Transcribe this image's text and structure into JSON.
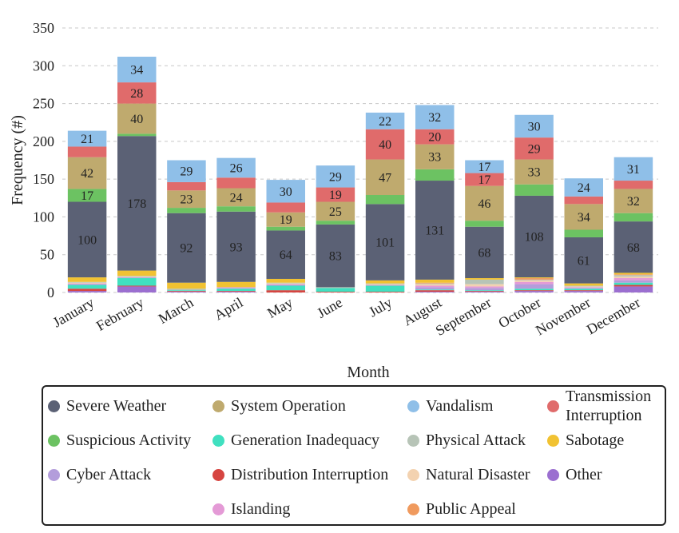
{
  "chart_data": {
    "type": "bar",
    "stacked": true,
    "xlabel": "Month",
    "ylabel": "Frequency (#)",
    "ylim": [
      0,
      350
    ],
    "yticks": [
      0,
      50,
      100,
      150,
      200,
      250,
      300,
      350
    ],
    "grid": "horizontal dashed",
    "legend_position": "bottom",
    "categories": [
      "January",
      "February",
      "March",
      "April",
      "May",
      "June",
      "July",
      "August",
      "September",
      "October",
      "November",
      "December"
    ],
    "series": [
      {
        "name": "Other",
        "color": "#9b6fd0",
        "values": [
          2,
          8,
          1,
          1,
          0,
          0,
          0,
          1,
          1,
          2,
          2,
          8
        ]
      },
      {
        "name": "Distribution Interruption",
        "color": "#d64541",
        "values": [
          3,
          1,
          1,
          1,
          3,
          1,
          1,
          2,
          1,
          1,
          1,
          2
        ]
      },
      {
        "name": "Generation Inadequacy",
        "color": "#40e0c0",
        "values": [
          5,
          10,
          1,
          3,
          6,
          5,
          8,
          1,
          1,
          2,
          2,
          3
        ]
      },
      {
        "name": "Cyber Attack",
        "color": "#b39ddb",
        "values": [
          1,
          1,
          0,
          1,
          1,
          0,
          0,
          3,
          3,
          6,
          1,
          3
        ]
      },
      {
        "name": "Islanding",
        "color": "#e49ad6",
        "values": [
          1,
          0,
          0,
          1,
          1,
          0,
          1,
          2,
          2,
          3,
          1,
          3
        ]
      },
      {
        "name": "Natural Disaster",
        "color": "#f3d2b0",
        "values": [
          1,
          1,
          0,
          0,
          1,
          0,
          1,
          2,
          3,
          2,
          1,
          2
        ]
      },
      {
        "name": "Physical Attack",
        "color": "#b7c4b7",
        "values": [
          1,
          1,
          2,
          0,
          1,
          1,
          1,
          1,
          6,
          1,
          1,
          2
        ]
      },
      {
        "name": "Public Appeal",
        "color": "#f09a5e",
        "values": [
          0,
          0,
          0,
          0,
          0,
          0,
          0,
          1,
          0,
          2,
          0,
          1
        ]
      },
      {
        "name": "Sabotage",
        "color": "#f1c232",
        "values": [
          6,
          7,
          8,
          7,
          5,
          0,
          4,
          4,
          2,
          1,
          3,
          2
        ]
      },
      {
        "name": "Severe Weather",
        "color": "#5b6175",
        "values": [
          100,
          178,
          92,
          93,
          64,
          83,
          101,
          131,
          68,
          108,
          61,
          68
        ]
      },
      {
        "name": "Suspicious Activity",
        "color": "#6cc262",
        "values": [
          17,
          3,
          7,
          7,
          5,
          5,
          12,
          15,
          8,
          15,
          10,
          11
        ]
      },
      {
        "name": "System Operation",
        "color": "#bfaa6e",
        "values": [
          42,
          40,
          23,
          24,
          19,
          25,
          47,
          33,
          46,
          33,
          34,
          32
        ]
      },
      {
        "name": "Transmission Interruption",
        "color": "#e06b6b",
        "values": [
          14,
          28,
          11,
          14,
          13,
          19,
          40,
          20,
          17,
          29,
          10,
          11
        ]
      },
      {
        "name": "Vandalism",
        "color": "#8fbfe8",
        "values": [
          21,
          34,
          29,
          26,
          30,
          29,
          22,
          32,
          17,
          30,
          24,
          31
        ]
      }
    ],
    "data_labels": [
      {
        "series": "Severe Weather",
        "values": [
          100,
          178,
          92,
          93,
          64,
          83,
          101,
          131,
          68,
          108,
          61,
          68
        ]
      },
      {
        "series": "System Operation",
        "values": [
          42,
          40,
          23,
          24,
          19,
          25,
          47,
          33,
          46,
          33,
          34,
          32
        ]
      },
      {
        "series": "Vandalism",
        "values": [
          21,
          34,
          29,
          26,
          30,
          29,
          22,
          32,
          17,
          30,
          24,
          31
        ]
      },
      {
        "series": "Transmission Interruption",
        "values": [
          null,
          28,
          null,
          null,
          null,
          19,
          40,
          20,
          17,
          29,
          null,
          null
        ]
      },
      {
        "series": "Suspicious Activity",
        "values": [
          17,
          null,
          null,
          null,
          null,
          null,
          null,
          null,
          null,
          null,
          null,
          null
        ]
      }
    ],
    "legend": [
      {
        "label": "Severe Weather",
        "color": "#5b6175"
      },
      {
        "label": "System Operation",
        "color": "#bfaa6e"
      },
      {
        "label": "Vandalism",
        "color": "#8fbfe8"
      },
      {
        "label": "Transmission\nInterruption",
        "color": "#e06b6b"
      },
      {
        "label": "Suspicious Activity",
        "color": "#6cc262"
      },
      {
        "label": "Generation Inadequacy",
        "color": "#40e0c0"
      },
      {
        "label": "Physical Attack",
        "color": "#b7c4b7"
      },
      {
        "label": "Sabotage",
        "color": "#f1c232"
      },
      {
        "label": "Cyber Attack",
        "color": "#b39ddb"
      },
      {
        "label": "Distribution Interruption",
        "color": "#d64541"
      },
      {
        "label": "Natural Disaster",
        "color": "#f3d2b0"
      },
      {
        "label": "Other",
        "color": "#9b6fd0"
      },
      {
        "label": "Islanding",
        "color": "#e49ad6"
      },
      {
        "label": "Public Appeal",
        "color": "#f09a5e"
      }
    ]
  }
}
